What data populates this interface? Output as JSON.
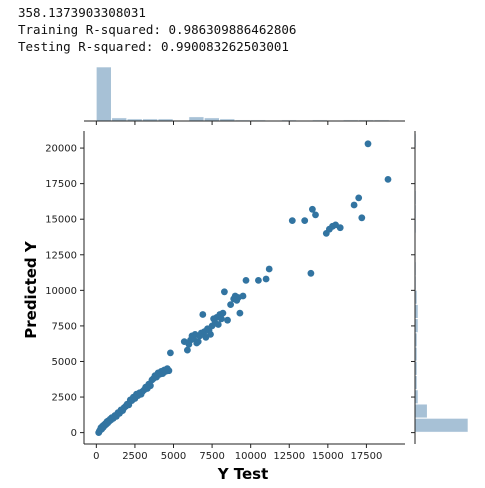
{
  "output": {
    "mae_line": "358.1373903308031",
    "train_line": "Training R-squared: 0.986309886462806",
    "test_line": "Testing R-squared: 0.990083262503001"
  },
  "chart_data": {
    "type": "scatter",
    "title": "",
    "xlabel": "Y Test",
    "ylabel": "Predicted Y",
    "xlim": [
      -800,
      20000
    ],
    "ylim": [
      -800,
      21200
    ],
    "xticks": [
      0,
      2500,
      5000,
      7500,
      10000,
      12500,
      15000,
      17500
    ],
    "yticks": [
      0,
      2500,
      5000,
      7500,
      10000,
      12500,
      15000,
      17500,
      20000
    ],
    "grid": false,
    "color": "#3274a1",
    "hist_color": "#a7c1d6",
    "points": [
      [
        150,
        0
      ],
      [
        200,
        100
      ],
      [
        250,
        200
      ],
      [
        300,
        350
      ],
      [
        350,
        250
      ],
      [
        400,
        450
      ],
      [
        450,
        380
      ],
      [
        500,
        550
      ],
      [
        550,
        500
      ],
      [
        600,
        650
      ],
      [
        650,
        600
      ],
      [
        700,
        780
      ],
      [
        750,
        700
      ],
      [
        800,
        850
      ],
      [
        850,
        820
      ],
      [
        900,
        950
      ],
      [
        950,
        900
      ],
      [
        1000,
        1050
      ],
      [
        1100,
        1000
      ],
      [
        1200,
        1200
      ],
      [
        1300,
        1150
      ],
      [
        1400,
        1400
      ],
      [
        1500,
        1350
      ],
      [
        1600,
        1600
      ],
      [
        1700,
        1550
      ],
      [
        1800,
        1750
      ],
      [
        1900,
        1850
      ],
      [
        2000,
        2000
      ],
      [
        2100,
        1950
      ],
      [
        2200,
        2300
      ],
      [
        2300,
        2250
      ],
      [
        2400,
        2500
      ],
      [
        2500,
        2400
      ],
      [
        2600,
        2700
      ],
      [
        2700,
        2600
      ],
      [
        2800,
        2800
      ],
      [
        2900,
        2700
      ],
      [
        3000,
        2900
      ],
      [
        3100,
        3000
      ],
      [
        3200,
        3200
      ],
      [
        3300,
        3100
      ],
      [
        3400,
        3400
      ],
      [
        3500,
        3300
      ],
      [
        3600,
        3700
      ],
      [
        3700,
        3800
      ],
      [
        3800,
        4000
      ],
      [
        3900,
        3900
      ],
      [
        4000,
        4200
      ],
      [
        4100,
        4100
      ],
      [
        4200,
        4300
      ],
      [
        4300,
        4150
      ],
      [
        4400,
        4400
      ],
      [
        4500,
        4300
      ],
      [
        4600,
        4500
      ],
      [
        4700,
        4350
      ],
      [
        4800,
        5600
      ],
      [
        5700,
        6400
      ],
      [
        5900,
        5800
      ],
      [
        6000,
        6200
      ],
      [
        6100,
        6500
      ],
      [
        6200,
        6800
      ],
      [
        6300,
        6600
      ],
      [
        6400,
        6900
      ],
      [
        6500,
        6300
      ],
      [
        6600,
        6400
      ],
      [
        6700,
        6800
      ],
      [
        6800,
        7000
      ],
      [
        6900,
        8300
      ],
      [
        7000,
        7100
      ],
      [
        7100,
        6700
      ],
      [
        7200,
        7300
      ],
      [
        7300,
        7200
      ],
      [
        7400,
        6900
      ],
      [
        7500,
        7500
      ],
      [
        7600,
        8000
      ],
      [
        7700,
        7700
      ],
      [
        7800,
        8100
      ],
      [
        7900,
        7600
      ],
      [
        8000,
        8300
      ],
      [
        8100,
        8000
      ],
      [
        8200,
        8400
      ],
      [
        8300,
        9900
      ],
      [
        8500,
        7900
      ],
      [
        8700,
        9000
      ],
      [
        8900,
        9400
      ],
      [
        9000,
        9600
      ],
      [
        9100,
        9300
      ],
      [
        9200,
        9500
      ],
      [
        9300,
        8400
      ],
      [
        9500,
        9600
      ],
      [
        9700,
        10700
      ],
      [
        10500,
        10700
      ],
      [
        11000,
        10800
      ],
      [
        11200,
        11500
      ],
      [
        12700,
        14900
      ],
      [
        13500,
        14900
      ],
      [
        13900,
        11200
      ],
      [
        14000,
        15700
      ],
      [
        14200,
        15300
      ],
      [
        14900,
        14000
      ],
      [
        15100,
        14300
      ],
      [
        15300,
        14500
      ],
      [
        15500,
        14600
      ],
      [
        15800,
        14400
      ],
      [
        16700,
        16000
      ],
      [
        17000,
        16500
      ],
      [
        17200,
        15100
      ],
      [
        17600,
        20300
      ],
      [
        18900,
        17800
      ]
    ],
    "marginal_x": {
      "bins": [
        0,
        1000,
        2000,
        3000,
        4000,
        5000,
        6000,
        7000,
        8000,
        9000,
        10000,
        11000,
        12000,
        13000,
        14000,
        15000,
        16000,
        17000,
        18000,
        19000
      ],
      "counts": [
        52,
        3,
        2,
        2,
        2,
        0,
        4,
        3,
        2,
        1,
        1,
        0,
        1,
        0,
        1,
        0,
        1,
        1,
        1
      ]
    },
    "marginal_y": {
      "bins": [
        0,
        1000,
        2000,
        3000,
        4000,
        5000,
        6000,
        7000,
        8000,
        9000,
        10000,
        11000,
        12000,
        13000,
        14000,
        15000,
        16000,
        17000,
        18000,
        19000,
        20000,
        21000
      ],
      "counts": [
        52,
        12,
        3,
        2,
        2,
        2,
        2,
        3,
        3,
        2,
        1,
        1,
        0,
        0,
        1,
        1,
        1,
        0,
        0,
        0,
        1
      ]
    }
  }
}
